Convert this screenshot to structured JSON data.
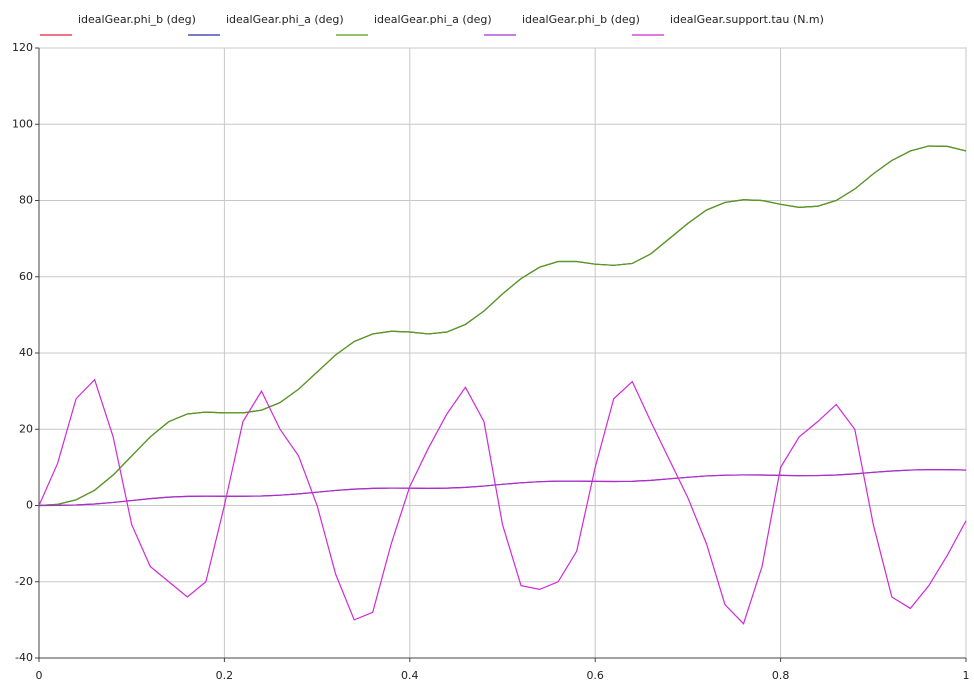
{
  "chart_data": {
    "type": "line",
    "x": [
      0,
      0.02,
      0.04,
      0.06,
      0.08,
      0.1,
      0.12,
      0.14,
      0.16,
      0.18,
      0.2,
      0.22,
      0.24,
      0.26,
      0.28,
      0.3,
      0.32,
      0.34,
      0.36,
      0.38,
      0.4,
      0.42,
      0.44,
      0.46,
      0.48,
      0.5,
      0.52,
      0.54,
      0.56,
      0.58,
      0.6,
      0.62,
      0.64,
      0.66,
      0.68,
      0.7,
      0.72,
      0.74,
      0.76,
      0.78,
      0.8,
      0.82,
      0.84,
      0.86,
      0.88,
      0.9,
      0.92,
      0.94,
      0.96,
      0.98,
      1
    ],
    "series": [
      {
        "name": "idealGear.phi_b (deg)",
        "color": "#e0203c",
        "values": [
          0,
          0.03,
          0.15,
          0.4,
          0.8,
          1.3,
          1.8,
          2.2,
          2.4,
          2.45,
          2.43,
          2.43,
          2.5,
          2.7,
          3.05,
          3.5,
          3.95,
          4.3,
          4.5,
          4.57,
          4.55,
          4.5,
          4.55,
          4.75,
          5.1,
          5.55,
          5.95,
          6.25,
          6.4,
          6.4,
          6.33,
          6.3,
          6.35,
          6.6,
          7,
          7.4,
          7.75,
          7.95,
          8.02,
          8,
          7.9,
          7.82,
          7.85,
          8,
          8.3,
          8.7,
          9.05,
          9.3,
          9.43,
          9.42,
          9.3
        ]
      },
      {
        "name": "idealGear.phi_a (deg)",
        "color": "#2a2aa8",
        "values": [
          0,
          0.3,
          1.5,
          4,
          8,
          13,
          18,
          22,
          24,
          24.5,
          24.3,
          24.3,
          25,
          27,
          30.5,
          35,
          39.5,
          43,
          45,
          45.7,
          45.5,
          45,
          45.5,
          47.5,
          51,
          55.5,
          59.5,
          62.5,
          64,
          64,
          63.3,
          63,
          63.5,
          66,
          70,
          74,
          77.5,
          79.5,
          80.2,
          80,
          79,
          78.2,
          78.5,
          80,
          83,
          87,
          90.5,
          93,
          94.3,
          94.2,
          93
        ]
      },
      {
        "name": "idealGear.phi_a (deg)",
        "color": "#5a9e10",
        "values": [
          0,
          0.3,
          1.5,
          4,
          8,
          13,
          18,
          22,
          24,
          24.5,
          24.3,
          24.3,
          25,
          27,
          30.5,
          35,
          39.5,
          43,
          45,
          45.7,
          45.5,
          45,
          45.5,
          47.5,
          51,
          55.5,
          59.5,
          62.5,
          64,
          64,
          63.3,
          63,
          63.5,
          66,
          70,
          74,
          77.5,
          79.5,
          80.2,
          80,
          79,
          78.2,
          78.5,
          80,
          83,
          87,
          90.5,
          93,
          94.3,
          94.2,
          93
        ]
      },
      {
        "name": "idealGear.phi_b (deg)",
        "color": "#a030d8",
        "values": [
          0,
          0.03,
          0.15,
          0.4,
          0.8,
          1.3,
          1.8,
          2.2,
          2.4,
          2.45,
          2.43,
          2.43,
          2.5,
          2.7,
          3.05,
          3.5,
          3.95,
          4.3,
          4.5,
          4.57,
          4.55,
          4.5,
          4.55,
          4.75,
          5.1,
          5.55,
          5.95,
          6.25,
          6.4,
          6.4,
          6.33,
          6.3,
          6.35,
          6.6,
          7,
          7.4,
          7.75,
          7.95,
          8.02,
          8,
          7.9,
          7.82,
          7.85,
          8,
          8.3,
          8.7,
          9.05,
          9.3,
          9.43,
          9.42,
          9.3
        ]
      },
      {
        "name": "idealGear.support.tau (N.m)",
        "color": "#d02ad8",
        "values": [
          0,
          11,
          28,
          33,
          18,
          -5,
          -16,
          -20,
          -24,
          -20,
          0,
          22,
          30,
          20,
          13,
          0,
          -18,
          -30,
          -28,
          -10,
          5,
          15,
          24,
          31,
          22,
          -5,
          -21,
          -22,
          -20,
          -12,
          10,
          28,
          32.5,
          22,
          12,
          2,
          -10,
          -26,
          -31,
          -16,
          10,
          18,
          22,
          26.5,
          20,
          -5,
          -24,
          -27,
          -21,
          -13,
          -4
        ]
      }
    ],
    "xlim": [
      0,
      1
    ],
    "xticks": [
      0,
      0.2,
      0.4,
      0.6,
      0.8,
      1
    ],
    "ylim": [
      -40,
      120
    ],
    "yticks": [
      -40,
      -20,
      0,
      20,
      40,
      60,
      80,
      100,
      120
    ],
    "grid": true
  }
}
